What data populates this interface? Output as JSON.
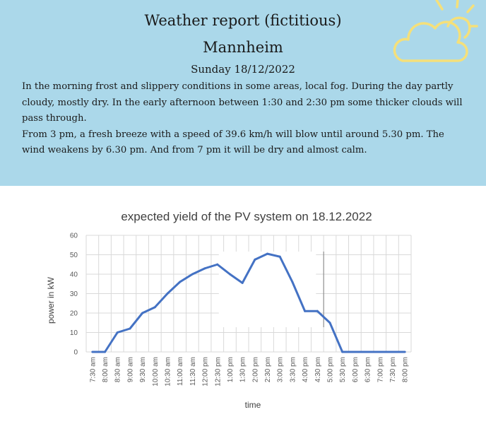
{
  "report": {
    "title": "Weather report (fictitious)",
    "city": "Mannheim",
    "date": "Sunday 18/12/2022",
    "paragraphs": [
      "In the morning frost and slippery conditions in some areas, local fog. During the day partly cloudy, mostly dry. In the early afternoon between 1:30  and 2:30 pm some thicker clouds will pass through.",
      "From 3 pm, a fresh breeze with a speed of 39.6 km/h will blow until around 5.30 pm. The wind weakens by 6.30 pm. And from 7 pm it will be dry and almost calm."
    ],
    "icon": "partly-cloudy-sun-icon",
    "colors": {
      "banner": "#abd8ea",
      "icon": "#f5e07a"
    }
  },
  "chart_data": {
    "type": "line",
    "title": "expected yield of the PV system on 18.12.2022",
    "xlabel": "time",
    "ylabel": "power in kW",
    "ylim": [
      0,
      60
    ],
    "yticks": [
      0,
      10,
      20,
      30,
      40,
      50,
      60
    ],
    "grid": true,
    "legend": "none",
    "categories": [
      "7:30 am",
      "8:00 am",
      "8:30 am",
      "9:00 am",
      "9:30 am",
      "10:00 am",
      "10:30 am",
      "11:00 am",
      "11:30 am",
      "12:00 pm",
      "12:30 pm",
      "1:00 pm",
      "1:30 pm",
      "2:00 pm",
      "2:30 pm",
      "3:00 pm",
      "3:30 pm",
      "4:00 pm",
      "4:30 pm",
      "5:00 pm",
      "5:30 pm",
      "6:00 pm",
      "6:30 pm",
      "7:00 pm",
      "7:30 pm",
      "8:00 pm"
    ],
    "series": [
      {
        "values": [
          0,
          0,
          10,
          12,
          20,
          23,
          30,
          36,
          40,
          43,
          45,
          40,
          35.5,
          47.5,
          50.5,
          49,
          36,
          21,
          21,
          15,
          0,
          0,
          0,
          0,
          0,
          0
        ]
      }
    ],
    "colors": {
      "line": "#4472c4",
      "grid": "#d9d9d9",
      "marker": "#808080"
    }
  }
}
